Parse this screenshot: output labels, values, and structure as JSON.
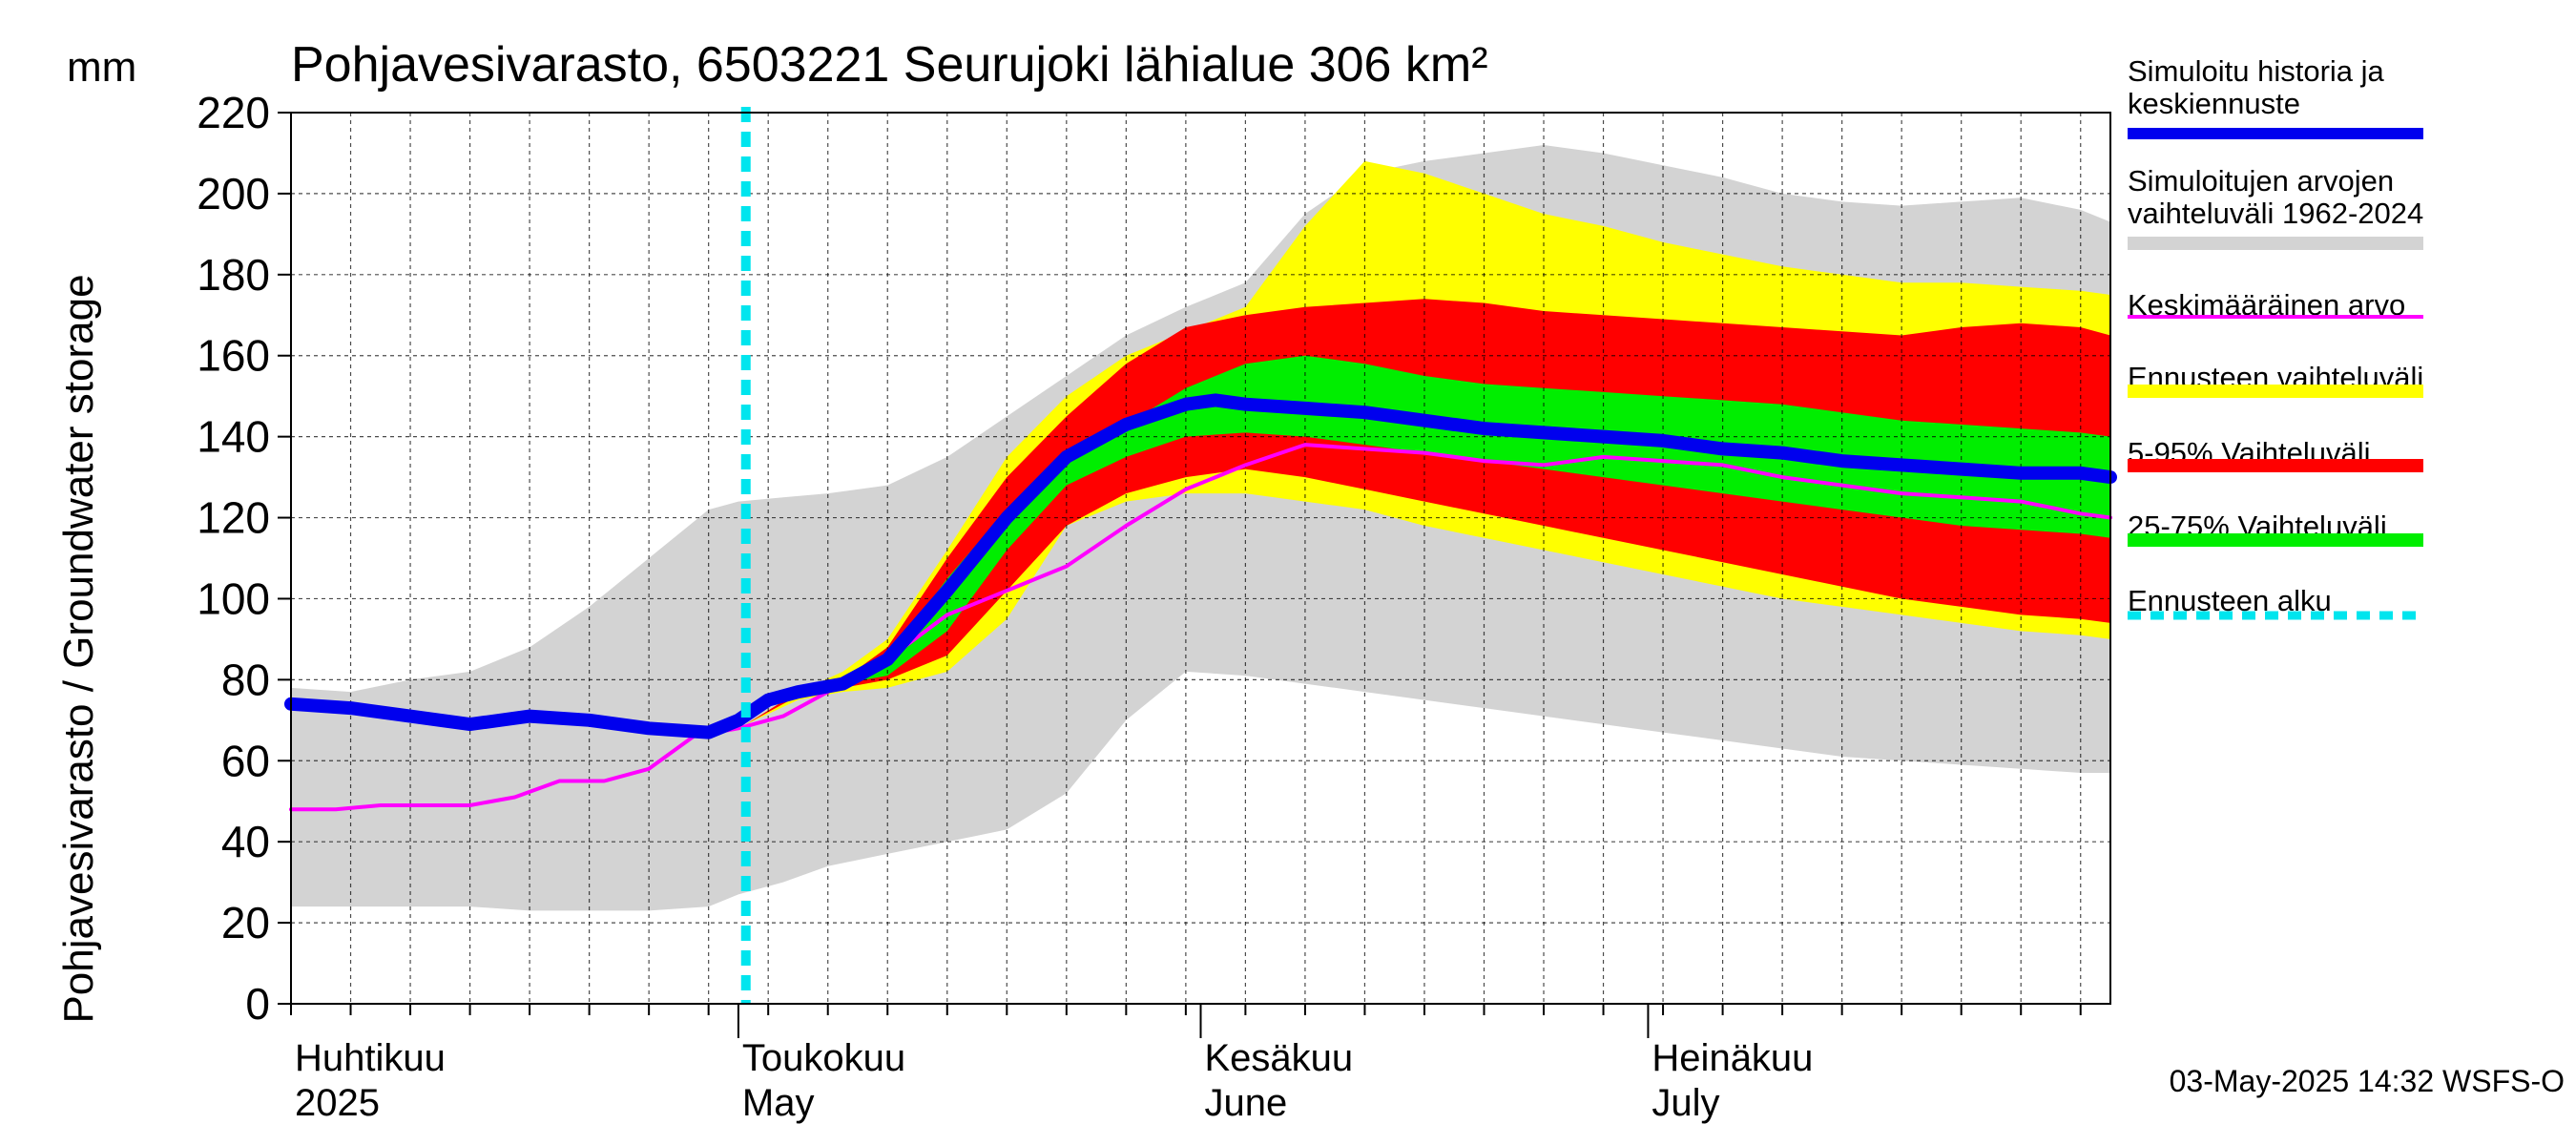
{
  "chart_data": {
    "type": "area",
    "title": "Pohjavesivarasto, 6503221 Seurujoki lähialue 306 km²",
    "ylabel": "Pohjavesivarasto / Groundwater storage",
    "unit": "mm",
    "ylim": [
      0,
      220
    ],
    "yticks": [
      0,
      20,
      40,
      60,
      80,
      100,
      120,
      140,
      160,
      180,
      200,
      220
    ],
    "xlim_day": [
      0,
      122
    ],
    "month_labels": [
      {
        "fi": "Huhtikuu",
        "en": "2025",
        "day": 0
      },
      {
        "fi": "Toukokuu",
        "en": "May",
        "day": 30
      },
      {
        "fi": "Kesäkuu",
        "en": "June",
        "day": 61
      },
      {
        "fi": "Heinäkuu",
        "en": "July",
        "day": 91
      }
    ],
    "forecast_start_day": 30.5,
    "series": [
      {
        "name": "Simuloitujen arvojen vaihteluväli 1962-2024",
        "kind": "band",
        "color": "#d3d3d3",
        "days": [
          0,
          4,
          8,
          12,
          16,
          20,
          24,
          28,
          30,
          33,
          36,
          40,
          44,
          48,
          52,
          56,
          60,
          64,
          68,
          72,
          76,
          80,
          84,
          88,
          92,
          96,
          100,
          104,
          108,
          112,
          116,
          120,
          122
        ],
        "upper": [
          78,
          77,
          80,
          82,
          88,
          98,
          110,
          122,
          124,
          125,
          126,
          128,
          135,
          145,
          155,
          165,
          172,
          178,
          195,
          205,
          208,
          210,
          212,
          210,
          207,
          204,
          200,
          198,
          197,
          198,
          199,
          196,
          193
        ],
        "lower": [
          24,
          24,
          24,
          24,
          23,
          23,
          23,
          24,
          27,
          30,
          34,
          37,
          40,
          43,
          52,
          70,
          82,
          81,
          79,
          77,
          75,
          73,
          71,
          69,
          67,
          65,
          63,
          61,
          60,
          59,
          58,
          57,
          57
        ]
      },
      {
        "name": "Ennusteen vaihteluväli",
        "kind": "band",
        "color": "#ffff00",
        "days": [
          30.5,
          34,
          37,
          40,
          44,
          48,
          52,
          56,
          60,
          64,
          68,
          72,
          76,
          80,
          84,
          88,
          92,
          96,
          100,
          104,
          108,
          112,
          116,
          120,
          122
        ],
        "upper": [
          69,
          77,
          82,
          90,
          112,
          135,
          150,
          160,
          166,
          172,
          192,
          208,
          205,
          200,
          195,
          192,
          188,
          185,
          182,
          180,
          178,
          178,
          177,
          176,
          175
        ],
        "lower": [
          69,
          75,
          77,
          78,
          82,
          95,
          118,
          124,
          126,
          126,
          124,
          122,
          118,
          115,
          112,
          109,
          106,
          103,
          100,
          98,
          96,
          94,
          92,
          91,
          90
        ]
      },
      {
        "name": "5-95% Vaihteluväli",
        "kind": "band",
        "color": "#ff0000",
        "days": [
          30.5,
          34,
          37,
          40,
          44,
          48,
          52,
          56,
          60,
          64,
          68,
          72,
          76,
          80,
          84,
          88,
          92,
          96,
          100,
          104,
          108,
          112,
          116,
          120,
          122
        ],
        "upper": [
          69,
          77,
          80,
          88,
          110,
          130,
          145,
          158,
          167,
          170,
          172,
          173,
          174,
          173,
          171,
          170,
          169,
          168,
          167,
          166,
          165,
          167,
          168,
          167,
          165
        ],
        "lower": [
          69,
          76,
          78,
          80,
          86,
          102,
          118,
          126,
          130,
          132,
          130,
          127,
          124,
          121,
          118,
          115,
          112,
          109,
          106,
          103,
          100,
          98,
          96,
          95,
          94
        ]
      },
      {
        "name": "25-75% Vaihteluväli",
        "kind": "band",
        "color": "#00ee00",
        "days": [
          30.5,
          34,
          37,
          40,
          44,
          48,
          52,
          56,
          60,
          64,
          68,
          72,
          76,
          80,
          84,
          88,
          92,
          96,
          100,
          104,
          108,
          112,
          116,
          120,
          122
        ],
        "upper": [
          69,
          77,
          79,
          85,
          105,
          122,
          133,
          143,
          152,
          158,
          160,
          158,
          155,
          153,
          152,
          151,
          150,
          149,
          148,
          146,
          144,
          143,
          142,
          141,
          140
        ],
        "lower": [
          69,
          77,
          79,
          81,
          92,
          112,
          128,
          135,
          140,
          141,
          140,
          138,
          136,
          134,
          132,
          130,
          128,
          126,
          124,
          122,
          120,
          118,
          117,
          116,
          115
        ]
      },
      {
        "name": "Keskimääräinen arvo",
        "kind": "line",
        "color": "#ff00ff",
        "days": [
          0,
          3,
          6,
          9,
          12,
          15,
          18,
          21,
          24,
          27,
          30,
          33,
          36,
          40,
          44,
          48,
          52,
          56,
          60,
          64,
          68,
          72,
          76,
          80,
          84,
          88,
          92,
          96,
          100,
          104,
          108,
          112,
          116,
          120,
          122
        ],
        "values": [
          48,
          48,
          49,
          49,
          49,
          51,
          55,
          55,
          58,
          66,
          68,
          71,
          77,
          85,
          96,
          102,
          108,
          118,
          127,
          133,
          138,
          137,
          136,
          134,
          133,
          135,
          134,
          133,
          130,
          128,
          126,
          125,
          124,
          121,
          120
        ]
      },
      {
        "name": "Simuloitu historia ja keskiennuste",
        "kind": "line",
        "color": "#0000ee",
        "days": [
          0,
          4,
          8,
          12,
          16,
          20,
          24,
          28,
          30,
          32,
          34,
          37,
          40,
          44,
          48,
          52,
          56,
          60,
          62,
          64,
          68,
          72,
          76,
          80,
          84,
          88,
          92,
          96,
          100,
          104,
          108,
          112,
          116,
          120,
          122
        ],
        "values": [
          74,
          73,
          71,
          69,
          71,
          70,
          68,
          67,
          70,
          75,
          77,
          79,
          85,
          102,
          120,
          135,
          143,
          148,
          149,
          148,
          147,
          146,
          144,
          142,
          141,
          140,
          139,
          137,
          136,
          134,
          133,
          132,
          131,
          131,
          130
        ]
      }
    ],
    "legend": [
      {
        "label": "Simuloitu historia ja keskiennuste",
        "lines": [
          "Simuloitu historia ja",
          "keskiennuste"
        ],
        "color": "#0000ee"
      },
      {
        "label": "Simuloitujen arvojen vaihteluväli 1962-2024",
        "lines": [
          "Simuloitujen arvojen",
          "vaihteluväli 1962-2024"
        ],
        "color": "#d3d3d3"
      },
      {
        "label": "Keskimääräinen arvo",
        "lines": [
          "Keskimääräinen arvo"
        ],
        "color": "#ff00ff"
      },
      {
        "label": "Ennusteen vaihteluväli",
        "lines": [
          "Ennusteen vaihteluväli"
        ],
        "color": "#ffff00"
      },
      {
        "label": "5-95% Vaihteluväli",
        "lines": [
          "5-95% Vaihteluväli"
        ],
        "color": "#ff0000"
      },
      {
        "label": "25-75% Vaihteluväli",
        "lines": [
          "25-75% Vaihteluväli"
        ],
        "color": "#00ee00"
      },
      {
        "label": "Ennusteen alku",
        "lines": [
          "Ennusteen alku"
        ],
        "color": "#00e5ee"
      }
    ],
    "footer": "03-May-2025 14:32 WSFS-O"
  }
}
